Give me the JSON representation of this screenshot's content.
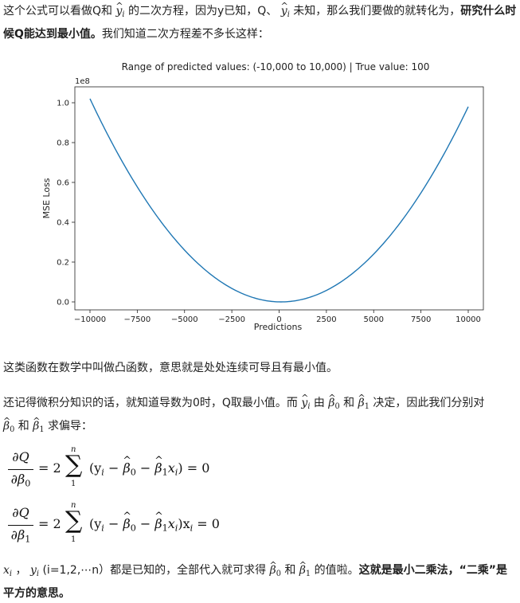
{
  "paragraph1": {
    "t1": "这个公式可以看做Q和",
    "yhat": "y",
    "yhat_sub": "i",
    "t2": "的二次方程，因为y已知，Q、",
    "t3": "未知，那么我们要做的就转化为，",
    "bold": "研究什么时候Q能达到最小值。",
    "t4": "我们知道二次方程差不多长这样："
  },
  "chart_data": {
    "type": "line",
    "title": "Range of predicted values: (-10,000 to 10,000) | True value: 100",
    "xlabel": "Predictions",
    "ylabel": "MSE Loss",
    "y_offset_label": "1e8",
    "true_value": 100,
    "xlim": [
      -10800,
      10800
    ],
    "ylim": [
      -0.04,
      1.08
    ],
    "x_ticks": [
      -10000,
      -7500,
      -5000,
      -2500,
      0,
      2500,
      5000,
      7500,
      10000
    ],
    "x_tick_labels": [
      "−10000",
      "−7500",
      "−5000",
      "−2500",
      "0",
      "2500",
      "5000",
      "7500",
      "10000"
    ],
    "y_ticks": [
      0.0,
      0.2,
      0.4,
      0.6,
      0.8,
      1.0
    ],
    "y_tick_labels": [
      "0.0",
      "0.2",
      "0.4",
      "0.6",
      "0.8",
      "1.0"
    ],
    "series": [
      {
        "x_range": [
          -10000,
          10000
        ],
        "line_color": "#1f77b4"
      }
    ],
    "grid": false
  },
  "paragraph2": {
    "text": "这类函数在数学中叫做凸函数，意思就是处处连续可导且有最小值。"
  },
  "paragraph3": {
    "t1": "还记得微积分知识的话，就知道导数为0时，Q取最小值。而",
    "t2": "由",
    "and": "和",
    "t3": "决定，因此我们分别对",
    "t4": "求偏导："
  },
  "equation1": {
    "num": "∂Q",
    "den_var": "∂β",
    "den_sub": "0",
    "coef": "= 2",
    "upper": "n",
    "lower": "1",
    "body": "(y",
    "tail": ") = 0",
    "last_term": ""
  },
  "equation2": {
    "num": "∂Q",
    "den_var": "∂β",
    "den_sub": "1",
    "coef": "= 2",
    "upper": "n",
    "lower": "1",
    "body": "(y",
    "tail": ")x",
    "last_term": " = 0"
  },
  "paragraph4": {
    "t1": "(i=1,2,⋯n）都是已知的，全部代入就可求得",
    "and": "和",
    "t2": "的值啦。",
    "bold1": "这就是最小二乘法，",
    "bold2": "“二乘”是平方的意思。"
  },
  "symbols": {
    "beta": "β",
    "b0": "0",
    "b1": "1",
    "x": "x",
    "y": "y",
    "i": "i",
    "sigma": "∑",
    "minus": " − ",
    "comma": "，"
  }
}
